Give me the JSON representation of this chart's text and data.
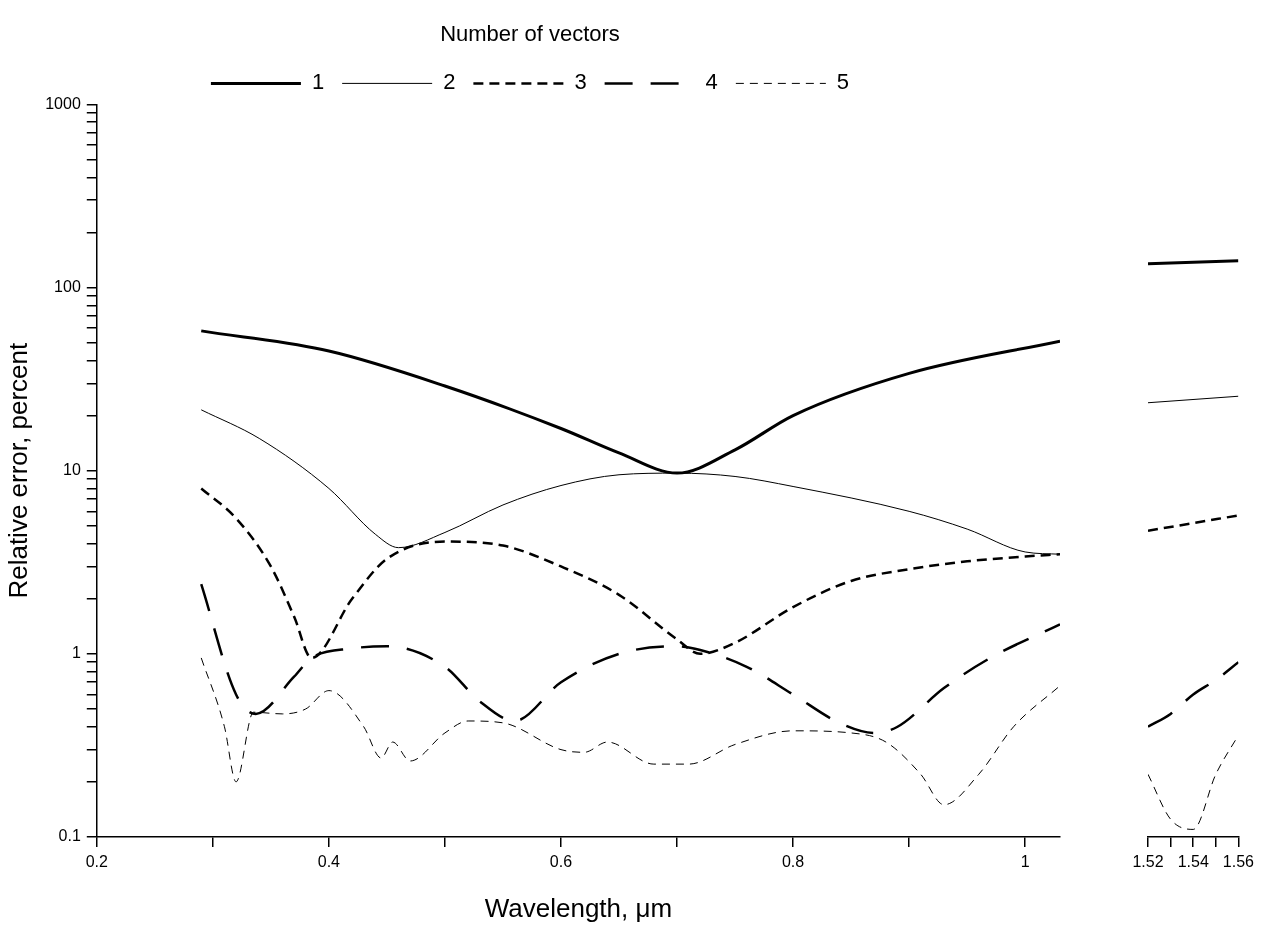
{
  "chart_data": [
    {
      "type": "line",
      "xlabel": "Wavelength, μm",
      "ylabel": "Relative error, percent",
      "legend_title": "Number of vectors",
      "legend": "top",
      "log": "y",
      "grid": false,
      "marker": "none",
      "xlim": [
        0.2,
        1.03
      ],
      "xticks": [
        0.2,
        {
          "value": 0.3,
          "label": null
        },
        0.4,
        {
          "value": 0.5,
          "label": null
        },
        0.6,
        {
          "value": 0.7,
          "label": null
        },
        0.8,
        {
          "value": 0.9,
          "label": null
        },
        1
      ],
      "ylim": [
        0.1,
        1000
      ],
      "yticks": [
        0.1,
        {
          "value": 0.2,
          "label": null
        },
        {
          "value": 0.3,
          "label": null
        },
        {
          "value": 0.4,
          "label": null
        },
        {
          "value": 0.5,
          "label": null
        },
        {
          "value": 0.6,
          "label": null
        },
        {
          "value": 0.7,
          "label": null
        },
        {
          "value": 0.8,
          "label": null
        },
        {
          "value": 0.9,
          "label": null
        },
        1,
        {
          "value": 2,
          "label": null
        },
        {
          "value": 3,
          "label": null
        },
        {
          "value": 4,
          "label": null
        },
        {
          "value": 5,
          "label": null
        },
        {
          "value": 6,
          "label": null
        },
        {
          "value": 7,
          "label": null
        },
        {
          "value": 8,
          "label": null
        },
        {
          "value": 9,
          "label": null
        },
        10,
        {
          "value": 20,
          "label": null
        },
        {
          "value": 30,
          "label": null
        },
        {
          "value": 40,
          "label": null
        },
        {
          "value": 50,
          "label": null
        },
        {
          "value": 60,
          "label": null
        },
        {
          "value": 70,
          "label": null
        },
        {
          "value": 80,
          "label": null
        },
        {
          "value": 90,
          "label": null
        },
        100,
        {
          "value": 200,
          "label": null
        },
        {
          "value": 300,
          "label": null
        },
        {
          "value": 400,
          "label": null
        },
        {
          "value": 500,
          "label": null
        },
        {
          "value": 600,
          "label": null
        },
        {
          "value": 700,
          "label": null
        },
        {
          "value": 800,
          "label": null
        },
        {
          "value": 900,
          "label": null
        },
        1000
      ],
      "series": [
        {
          "name": "1",
          "color": "#000000",
          "line_style": "solid",
          "x": [
            0.29,
            0.4,
            0.5,
            0.6,
            0.65,
            0.7,
            0.75,
            0.8,
            0.9,
            1.03
          ],
          "values": [
            58,
            45,
            29,
            17,
            12.5,
            9.7,
            13,
            20,
            34,
            51
          ]
        },
        {
          "name": "2",
          "color": "#000000",
          "line_style": "solid",
          "x": [
            0.29,
            0.34,
            0.4,
            0.44,
            0.46,
            0.5,
            0.55,
            0.6,
            0.65,
            0.7,
            0.75,
            0.8,
            0.9,
            0.95,
            1.0,
            1.03
          ],
          "values": [
            21.5,
            15,
            8,
            4.5,
            3.8,
            4.6,
            6.5,
            8.3,
            9.5,
            9.7,
            9.3,
            8.2,
            6,
            4.8,
            3.6,
            3.5
          ]
        },
        {
          "name": "3",
          "color": "#000000",
          "line_style": "dashed",
          "x": [
            0.29,
            0.32,
            0.35,
            0.37,
            0.385,
            0.42,
            0.45,
            0.5,
            0.55,
            0.6,
            0.65,
            0.7,
            0.72,
            0.75,
            0.8,
            0.85,
            0.9,
            0.95,
            1.0,
            1.03
          ],
          "values": [
            8,
            5.5,
            3,
            1.6,
            0.95,
            2.0,
            3.3,
            4.1,
            3.9,
            3.0,
            2.1,
            1.2,
            1.0,
            1.15,
            1.8,
            2.5,
            2.9,
            3.2,
            3.4,
            3.5
          ]
        },
        {
          "name": "4",
          "color": "#000000",
          "line_style": "dashed",
          "x": [
            0.29,
            0.32,
            0.337,
            0.37,
            0.385,
            0.42,
            0.45,
            0.5,
            0.53,
            0.56,
            0.6,
            0.65,
            0.7,
            0.72,
            0.76,
            0.8,
            0.84,
            0.87,
            0.89,
            0.93,
            0.97,
            1.03
          ],
          "values": [
            2.4,
            0.6,
            0.47,
            0.75,
            0.95,
            1.07,
            1.1,
            0.85,
            0.55,
            0.43,
            0.7,
            1.0,
            1.1,
            1.05,
            0.85,
            0.6,
            0.42,
            0.37,
            0.4,
            0.65,
            0.95,
            1.45
          ]
        },
        {
          "name": "5",
          "color": "#000000",
          "line_style": "dashed",
          "x": [
            0.29,
            0.31,
            0.32,
            0.335,
            0.36,
            0.38,
            0.4,
            0.43,
            0.445,
            0.455,
            0.47,
            0.5,
            0.52,
            0.55,
            0.6,
            0.62,
            0.64,
            0.68,
            0.71,
            0.75,
            0.8,
            0.85,
            0.88,
            0.91,
            0.93,
            0.96,
            0.99,
            1.03
          ],
          "values": [
            0.95,
            0.4,
            0.2,
            0.48,
            0.47,
            0.5,
            0.63,
            0.4,
            0.27,
            0.33,
            0.26,
            0.37,
            0.43,
            0.42,
            0.3,
            0.29,
            0.33,
            0.25,
            0.25,
            0.32,
            0.38,
            0.37,
            0.33,
            0.22,
            0.15,
            0.22,
            0.4,
            0.67
          ]
        }
      ]
    },
    {
      "type": "line",
      "log": "y",
      "grid": false,
      "marker": "none",
      "tick_labels": "x",
      "xlim": [
        1.52,
        1.56
      ],
      "xticks": [
        1.52,
        {
          "value": 1.53,
          "label": null
        },
        1.54,
        {
          "value": 1.55,
          "label": null
        },
        1.56
      ],
      "ylim": [
        0.1,
        1000
      ],
      "yticks": [
        0.1,
        1,
        10,
        100,
        1000
      ],
      "series": [
        {
          "color": "#000000",
          "line_style": "solid",
          "x": [
            1.52,
            1.56
          ],
          "values": [
            135,
            140
          ]
        },
        {
          "color": "#000000",
          "line_style": "solid",
          "x": [
            1.52,
            1.56
          ],
          "values": [
            23.5,
            25.5
          ]
        },
        {
          "color": "#000000",
          "line_style": "dashed",
          "x": [
            1.52,
            1.56
          ],
          "values": [
            4.7,
            5.7
          ]
        },
        {
          "color": "#000000",
          "line_style": "dashed",
          "x": [
            1.52,
            1.53,
            1.54,
            1.55,
            1.56
          ],
          "values": [
            0.4,
            0.47,
            0.6,
            0.72,
            0.9
          ]
        },
        {
          "color": "#000000",
          "line_style": "dashed",
          "x": [
            1.52,
            1.53,
            1.54,
            1.55,
            1.56
          ],
          "values": [
            0.22,
            0.125,
            0.11,
            0.22,
            0.36
          ]
        }
      ]
    }
  ]
}
